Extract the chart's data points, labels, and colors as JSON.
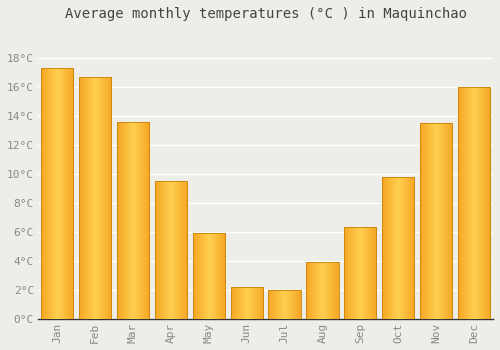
{
  "title": "Average monthly temperatures (°C ) in Maquinchao",
  "months": [
    "Jan",
    "Feb",
    "Mar",
    "Apr",
    "May",
    "Jun",
    "Jul",
    "Aug",
    "Sep",
    "Oct",
    "Nov",
    "Dec"
  ],
  "values": [
    17.3,
    16.7,
    13.6,
    9.5,
    5.9,
    2.2,
    2.0,
    3.9,
    6.3,
    9.8,
    13.5,
    16.0
  ],
  "bar_color_left": "#F5A623",
  "bar_color_center": "#FFD060",
  "bar_color_right": "#F5A623",
  "bar_edge_color": "#C8820A",
  "ylim": [
    0,
    20
  ],
  "yticks": [
    0,
    2,
    4,
    6,
    8,
    10,
    12,
    14,
    16,
    18
  ],
  "ytick_labels": [
    "0°C",
    "2°C",
    "4°C",
    "6°C",
    "8°C",
    "10°C",
    "12°C",
    "14°C",
    "16°C",
    "18°C"
  ],
  "background_color": "#eeeee8",
  "grid_color": "#ffffff",
  "axis_line_color": "#333333",
  "title_fontsize": 10,
  "tick_fontsize": 8,
  "tick_color": "#888888",
  "bar_width": 0.85
}
